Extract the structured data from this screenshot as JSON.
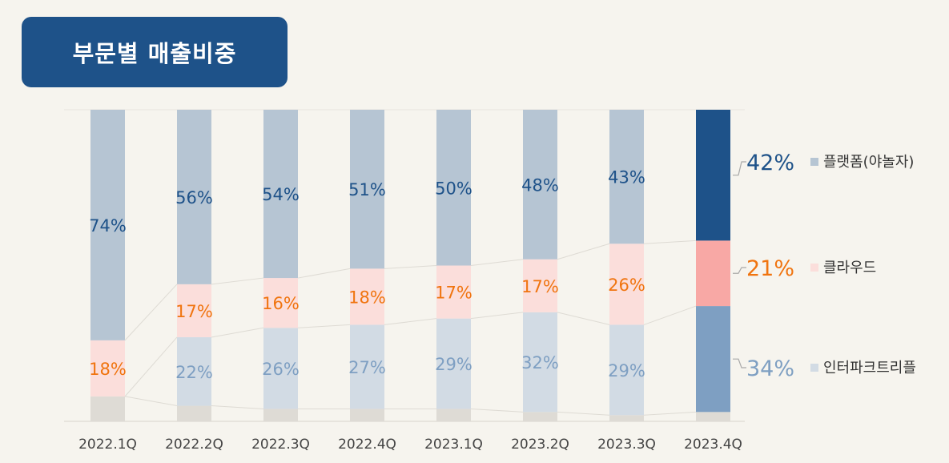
{
  "title": "부문별 매출비중",
  "chart_data": {
    "type": "bar",
    "stacked": true,
    "categories": [
      "2022.1Q",
      "2022.2Q",
      "2022.3Q",
      "2022.4Q",
      "2023.1Q",
      "2023.2Q",
      "2023.3Q",
      "2023.4Q"
    ],
    "ylim": [
      0,
      100
    ],
    "series": [
      {
        "name": "인터파크트리플",
        "values": [
          0,
          22,
          26,
          27,
          29,
          32,
          29,
          34
        ],
        "labels": [
          "",
          "22%",
          "26%",
          "27%",
          "29%",
          "32%",
          "29%",
          "34%"
        ],
        "color": "#d2dbe4",
        "final_color": "#7e9fc2",
        "text_color": "#7e9fc2"
      },
      {
        "name": "클라우드",
        "values": [
          18,
          17,
          16,
          18,
          17,
          17,
          26,
          21
        ],
        "labels": [
          "18%",
          "17%",
          "16%",
          "18%",
          "17%",
          "17%",
          "26%",
          "21%"
        ],
        "color": "#fbdedb",
        "final_color": "#f8a8a5",
        "text_color": "#f0740f"
      },
      {
        "name": "플랫폼(야놀자)",
        "values": [
          74,
          56,
          54,
          51,
          50,
          48,
          43,
          42
        ],
        "labels": [
          "74%",
          "56%",
          "54%",
          "51%",
          "50%",
          "48%",
          "43%",
          "42%"
        ],
        "color": "#b6c5d3",
        "final_color": "#1e5289",
        "text_color": "#1e5289"
      }
    ],
    "other_color": "#dedbd5",
    "legend": [
      {
        "name": "플랫폼(야놀자)",
        "color": "#b6c5d3"
      },
      {
        "name": "클라우드",
        "color": "#fbdedb"
      },
      {
        "name": "인터파크트리플",
        "color": "#d2dbe4"
      }
    ],
    "legend_position": "right"
  }
}
